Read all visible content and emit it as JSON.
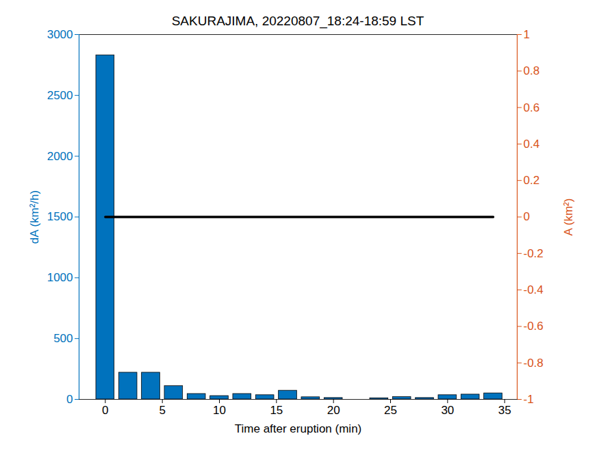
{
  "chart_data": {
    "type": "bar",
    "title": "SAKURAJIMA, 20220807_18:24-18:59 LST",
    "xlabel": "Time after eruption (min)",
    "ylabel": "dA (km²/h)",
    "y2label": "A (km²)",
    "x": [
      0,
      2,
      4,
      6,
      8,
      10,
      12,
      14,
      16,
      18,
      20,
      22,
      24,
      26,
      28,
      30,
      32,
      34
    ],
    "series": [
      {
        "type": "bar",
        "color": "#0072BD",
        "values": [
          2830,
          220,
          220,
          110,
          45,
          28,
          45,
          35,
          72,
          18,
          12,
          0,
          10,
          20,
          12,
          35,
          40,
          50
        ]
      },
      {
        "type": "line",
        "axis": "y2",
        "color": "#000000",
        "values": [
          0,
          0,
          0,
          0,
          0,
          0,
          0,
          0,
          0,
          0,
          0,
          0,
          0,
          0,
          0,
          0,
          0,
          0
        ]
      }
    ],
    "xlim": [
      -2.3,
      36.1
    ],
    "xticks": [
      0,
      5,
      10,
      15,
      20,
      25,
      30,
      35
    ],
    "ylim": [
      0,
      3000
    ],
    "yticks": [
      0,
      500,
      1000,
      1500,
      2000,
      2500,
      3000
    ],
    "y2lim": [
      -1,
      1
    ],
    "y2ticks": [
      -1,
      -0.8,
      -0.6,
      -0.4,
      -0.2,
      0,
      0.2,
      0.4,
      0.6,
      0.8,
      1
    ],
    "grid": false
  }
}
